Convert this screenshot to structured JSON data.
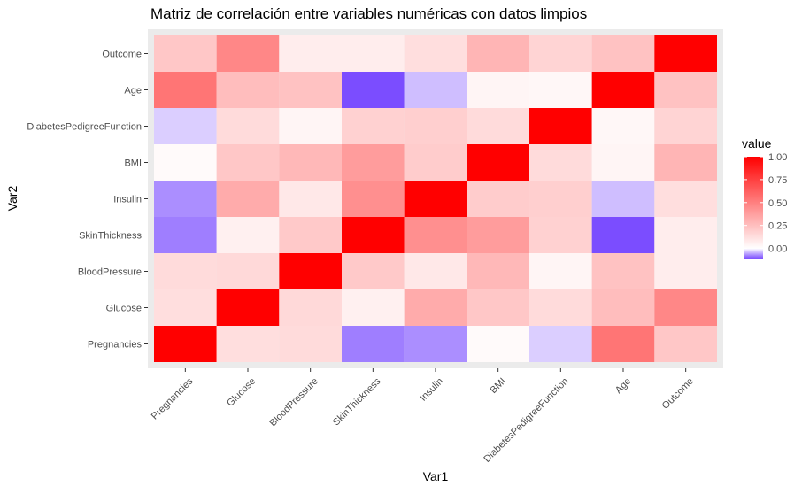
{
  "chart_data": {
    "type": "heatmap",
    "title": "Matriz de correlación entre variables numéricas con datos limpios",
    "xlabel": "Var1",
    "ylabel": "Var2",
    "variables": [
      "Pregnancies",
      "Glucose",
      "BloodPressure",
      "SkinThickness",
      "Insulin",
      "BMI",
      "DiabetesPedigreeFunction",
      "Age",
      "Outcome"
    ],
    "x_categories": [
      "Pregnancies",
      "Glucose",
      "BloodPressure",
      "SkinThickness",
      "Insulin",
      "BMI",
      "DiabetesPedigreeFunction",
      "Age",
      "Outcome"
    ],
    "y_categories_bottom_to_top": [
      "Pregnancies",
      "Glucose",
      "BloodPressure",
      "SkinThickness",
      "Insulin",
      "BMI",
      "DiabetesPedigreeFunction",
      "Age",
      "Outcome"
    ],
    "values": [
      [
        1.0,
        0.13,
        0.14,
        -0.08,
        -0.07,
        0.02,
        -0.03,
        0.54,
        0.22
      ],
      [
        0.13,
        1.0,
        0.15,
        0.06,
        0.33,
        0.22,
        0.14,
        0.26,
        0.47
      ],
      [
        0.14,
        0.15,
        1.0,
        0.21,
        0.09,
        0.28,
        0.04,
        0.24,
        0.07
      ],
      [
        -0.08,
        0.06,
        0.21,
        1.0,
        0.44,
        0.39,
        0.18,
        -0.11,
        0.07
      ],
      [
        -0.07,
        0.33,
        0.09,
        0.44,
        1.0,
        0.2,
        0.19,
        -0.04,
        0.13
      ],
      [
        0.02,
        0.22,
        0.28,
        0.39,
        0.2,
        1.0,
        0.14,
        0.04,
        0.29
      ],
      [
        -0.03,
        0.14,
        0.04,
        0.18,
        0.19,
        0.14,
        1.0,
        0.03,
        0.17
      ],
      [
        0.54,
        0.26,
        0.24,
        -0.11,
        -0.04,
        0.04,
        0.03,
        1.0,
        0.24
      ],
      [
        0.22,
        0.47,
        0.07,
        0.07,
        0.13,
        0.29,
        0.17,
        0.24,
        1.0
      ]
    ],
    "legend": {
      "title": "value",
      "position": "right",
      "ticks": [
        "1.00",
        "0.75",
        "0.50",
        "0.25",
        "0.00"
      ],
      "tick_values": [
        1.0,
        0.75,
        0.5,
        0.25,
        0.0
      ],
      "range": [
        -0.11,
        1.0
      ]
    },
    "colors": {
      "low": "#7b4dff",
      "mid": "#ffffff",
      "high": "#ff0000",
      "panel": "#ebebeb"
    },
    "grid": true
  }
}
